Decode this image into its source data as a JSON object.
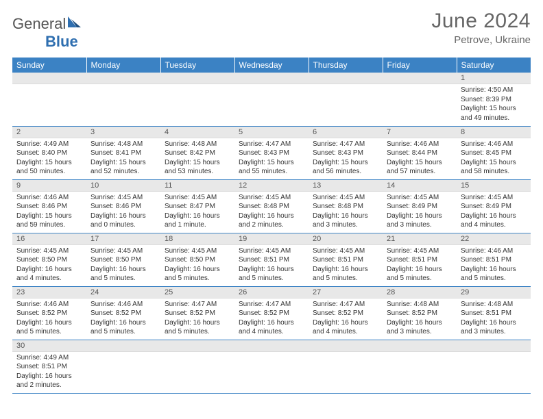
{
  "brand": {
    "part1": "General",
    "part2": "Blue"
  },
  "title": "June 2024",
  "location": "Petrove, Ukraine",
  "calendar": {
    "type": "table",
    "header_bg": "#3b82c4",
    "header_fg": "#ffffff",
    "row_divider_color": "#3b82c4",
    "daynum_bg": "#e8e8e8",
    "background_color": "#ffffff",
    "text_color": "#333333",
    "font_family": "Arial",
    "body_fontsize": 10,
    "header_fontsize": 12,
    "title_fontsize": 30,
    "days": [
      "Sunday",
      "Monday",
      "Tuesday",
      "Wednesday",
      "Thursday",
      "Friday",
      "Saturday"
    ],
    "weeks": [
      [
        null,
        null,
        null,
        null,
        null,
        null,
        {
          "n": "1",
          "sr": "Sunrise: 4:50 AM",
          "ss": "Sunset: 8:39 PM",
          "dl": "Daylight: 15 hours and 49 minutes."
        }
      ],
      [
        {
          "n": "2",
          "sr": "Sunrise: 4:49 AM",
          "ss": "Sunset: 8:40 PM",
          "dl": "Daylight: 15 hours and 50 minutes."
        },
        {
          "n": "3",
          "sr": "Sunrise: 4:48 AM",
          "ss": "Sunset: 8:41 PM",
          "dl": "Daylight: 15 hours and 52 minutes."
        },
        {
          "n": "4",
          "sr": "Sunrise: 4:48 AM",
          "ss": "Sunset: 8:42 PM",
          "dl": "Daylight: 15 hours and 53 minutes."
        },
        {
          "n": "5",
          "sr": "Sunrise: 4:47 AM",
          "ss": "Sunset: 8:43 PM",
          "dl": "Daylight: 15 hours and 55 minutes."
        },
        {
          "n": "6",
          "sr": "Sunrise: 4:47 AM",
          "ss": "Sunset: 8:43 PM",
          "dl": "Daylight: 15 hours and 56 minutes."
        },
        {
          "n": "7",
          "sr": "Sunrise: 4:46 AM",
          "ss": "Sunset: 8:44 PM",
          "dl": "Daylight: 15 hours and 57 minutes."
        },
        {
          "n": "8",
          "sr": "Sunrise: 4:46 AM",
          "ss": "Sunset: 8:45 PM",
          "dl": "Daylight: 15 hours and 58 minutes."
        }
      ],
      [
        {
          "n": "9",
          "sr": "Sunrise: 4:46 AM",
          "ss": "Sunset: 8:46 PM",
          "dl": "Daylight: 15 hours and 59 minutes."
        },
        {
          "n": "10",
          "sr": "Sunrise: 4:45 AM",
          "ss": "Sunset: 8:46 PM",
          "dl": "Daylight: 16 hours and 0 minutes."
        },
        {
          "n": "11",
          "sr": "Sunrise: 4:45 AM",
          "ss": "Sunset: 8:47 PM",
          "dl": "Daylight: 16 hours and 1 minute."
        },
        {
          "n": "12",
          "sr": "Sunrise: 4:45 AM",
          "ss": "Sunset: 8:48 PM",
          "dl": "Daylight: 16 hours and 2 minutes."
        },
        {
          "n": "13",
          "sr": "Sunrise: 4:45 AM",
          "ss": "Sunset: 8:48 PM",
          "dl": "Daylight: 16 hours and 3 minutes."
        },
        {
          "n": "14",
          "sr": "Sunrise: 4:45 AM",
          "ss": "Sunset: 8:49 PM",
          "dl": "Daylight: 16 hours and 3 minutes."
        },
        {
          "n": "15",
          "sr": "Sunrise: 4:45 AM",
          "ss": "Sunset: 8:49 PM",
          "dl": "Daylight: 16 hours and 4 minutes."
        }
      ],
      [
        {
          "n": "16",
          "sr": "Sunrise: 4:45 AM",
          "ss": "Sunset: 8:50 PM",
          "dl": "Daylight: 16 hours and 4 minutes."
        },
        {
          "n": "17",
          "sr": "Sunrise: 4:45 AM",
          "ss": "Sunset: 8:50 PM",
          "dl": "Daylight: 16 hours and 5 minutes."
        },
        {
          "n": "18",
          "sr": "Sunrise: 4:45 AM",
          "ss": "Sunset: 8:50 PM",
          "dl": "Daylight: 16 hours and 5 minutes."
        },
        {
          "n": "19",
          "sr": "Sunrise: 4:45 AM",
          "ss": "Sunset: 8:51 PM",
          "dl": "Daylight: 16 hours and 5 minutes."
        },
        {
          "n": "20",
          "sr": "Sunrise: 4:45 AM",
          "ss": "Sunset: 8:51 PM",
          "dl": "Daylight: 16 hours and 5 minutes."
        },
        {
          "n": "21",
          "sr": "Sunrise: 4:45 AM",
          "ss": "Sunset: 8:51 PM",
          "dl": "Daylight: 16 hours and 5 minutes."
        },
        {
          "n": "22",
          "sr": "Sunrise: 4:46 AM",
          "ss": "Sunset: 8:51 PM",
          "dl": "Daylight: 16 hours and 5 minutes."
        }
      ],
      [
        {
          "n": "23",
          "sr": "Sunrise: 4:46 AM",
          "ss": "Sunset: 8:52 PM",
          "dl": "Daylight: 16 hours and 5 minutes."
        },
        {
          "n": "24",
          "sr": "Sunrise: 4:46 AM",
          "ss": "Sunset: 8:52 PM",
          "dl": "Daylight: 16 hours and 5 minutes."
        },
        {
          "n": "25",
          "sr": "Sunrise: 4:47 AM",
          "ss": "Sunset: 8:52 PM",
          "dl": "Daylight: 16 hours and 5 minutes."
        },
        {
          "n": "26",
          "sr": "Sunrise: 4:47 AM",
          "ss": "Sunset: 8:52 PM",
          "dl": "Daylight: 16 hours and 4 minutes."
        },
        {
          "n": "27",
          "sr": "Sunrise: 4:47 AM",
          "ss": "Sunset: 8:52 PM",
          "dl": "Daylight: 16 hours and 4 minutes."
        },
        {
          "n": "28",
          "sr": "Sunrise: 4:48 AM",
          "ss": "Sunset: 8:52 PM",
          "dl": "Daylight: 16 hours and 3 minutes."
        },
        {
          "n": "29",
          "sr": "Sunrise: 4:48 AM",
          "ss": "Sunset: 8:51 PM",
          "dl": "Daylight: 16 hours and 3 minutes."
        }
      ],
      [
        {
          "n": "30",
          "sr": "Sunrise: 4:49 AM",
          "ss": "Sunset: 8:51 PM",
          "dl": "Daylight: 16 hours and 2 minutes."
        },
        null,
        null,
        null,
        null,
        null,
        null
      ]
    ]
  }
}
